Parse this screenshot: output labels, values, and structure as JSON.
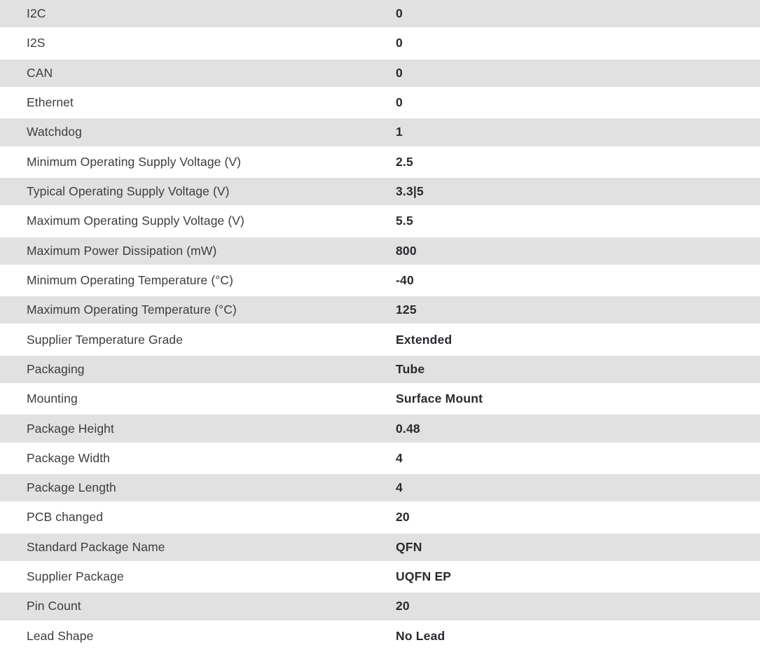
{
  "table": {
    "rows": [
      {
        "label": "I2C",
        "value": "0"
      },
      {
        "label": "I2S",
        "value": "0"
      },
      {
        "label": "CAN",
        "value": "0"
      },
      {
        "label": "Ethernet",
        "value": "0"
      },
      {
        "label": "Watchdog",
        "value": "1"
      },
      {
        "label": "Minimum Operating Supply Voltage (V)",
        "value": "2.5"
      },
      {
        "label": "Typical Operating Supply Voltage (V)",
        "value": "3.3|5"
      },
      {
        "label": "Maximum Operating Supply Voltage (V)",
        "value": "5.5"
      },
      {
        "label": "Maximum Power Dissipation (mW)",
        "value": "800"
      },
      {
        "label": "Minimum Operating Temperature (°C)",
        "value": "-40"
      },
      {
        "label": "Maximum Operating Temperature (°C)",
        "value": "125"
      },
      {
        "label": "Supplier Temperature Grade",
        "value": "Extended"
      },
      {
        "label": "Packaging",
        "value": "Tube"
      },
      {
        "label": "Mounting",
        "value": "Surface Mount"
      },
      {
        "label": "Package Height",
        "value": "0.48"
      },
      {
        "label": "Package Width",
        "value": "4"
      },
      {
        "label": "Package Length",
        "value": "4"
      },
      {
        "label": "PCB changed",
        "value": "20"
      },
      {
        "label": "Standard Package Name",
        "value": "QFN"
      },
      {
        "label": "Supplier Package",
        "value": "UQFN EP"
      },
      {
        "label": "Pin Count",
        "value": "20"
      },
      {
        "label": "Lead Shape",
        "value": "No Lead"
      }
    ]
  },
  "colors": {
    "stripe_row_bg": "#e1e1e1",
    "plain_row_bg": "#ffffff",
    "label_text": "#3d3d42",
    "value_text": "#29292e"
  }
}
